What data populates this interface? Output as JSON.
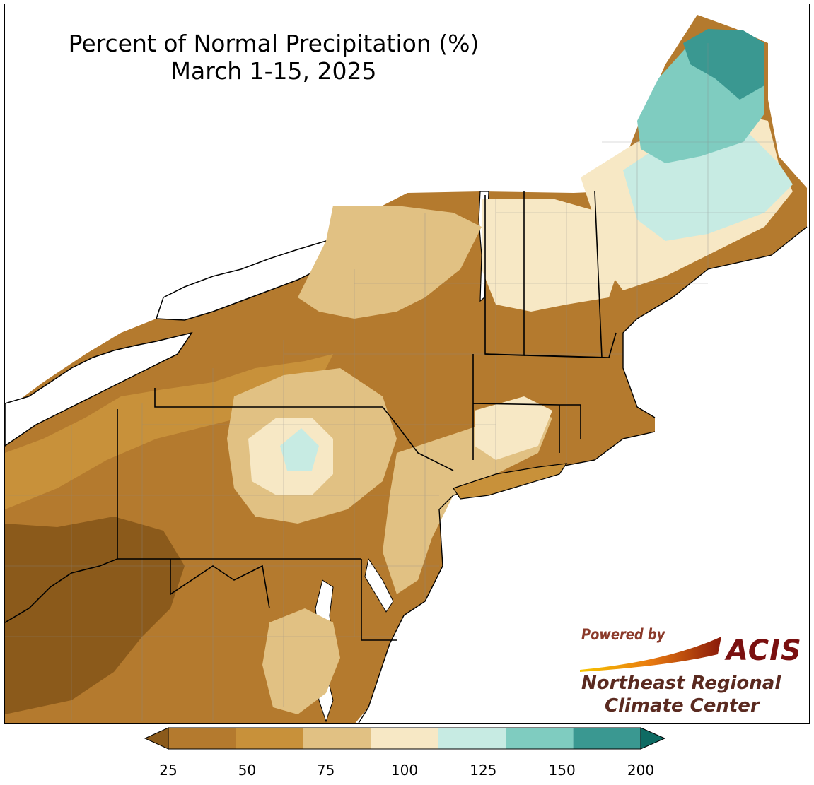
{
  "title": {
    "line1": "Percent of Normal Precipitation (%)",
    "line2": "March 1-15, 2025"
  },
  "logo": {
    "powered_by": "Powered by",
    "acis": "ACIS",
    "org_line1": "Northeast Regional",
    "org_line2": "Climate Center"
  },
  "legend": {
    "ticks": [
      "25",
      "50",
      "75",
      "100",
      "125",
      "150",
      "200"
    ],
    "colors": [
      "#b47a2e",
      "#c8913a",
      "#e1c183",
      "#f7e8c5",
      "#c7ebe3",
      "#7fccc0",
      "#3a9891"
    ],
    "under_color": "#8b5a1b",
    "over_color": "#0e6b63"
  },
  "map": {
    "water_color": "#ffffff",
    "state_border_color": "#000000",
    "county_border_color": "#8a8a8a"
  }
}
